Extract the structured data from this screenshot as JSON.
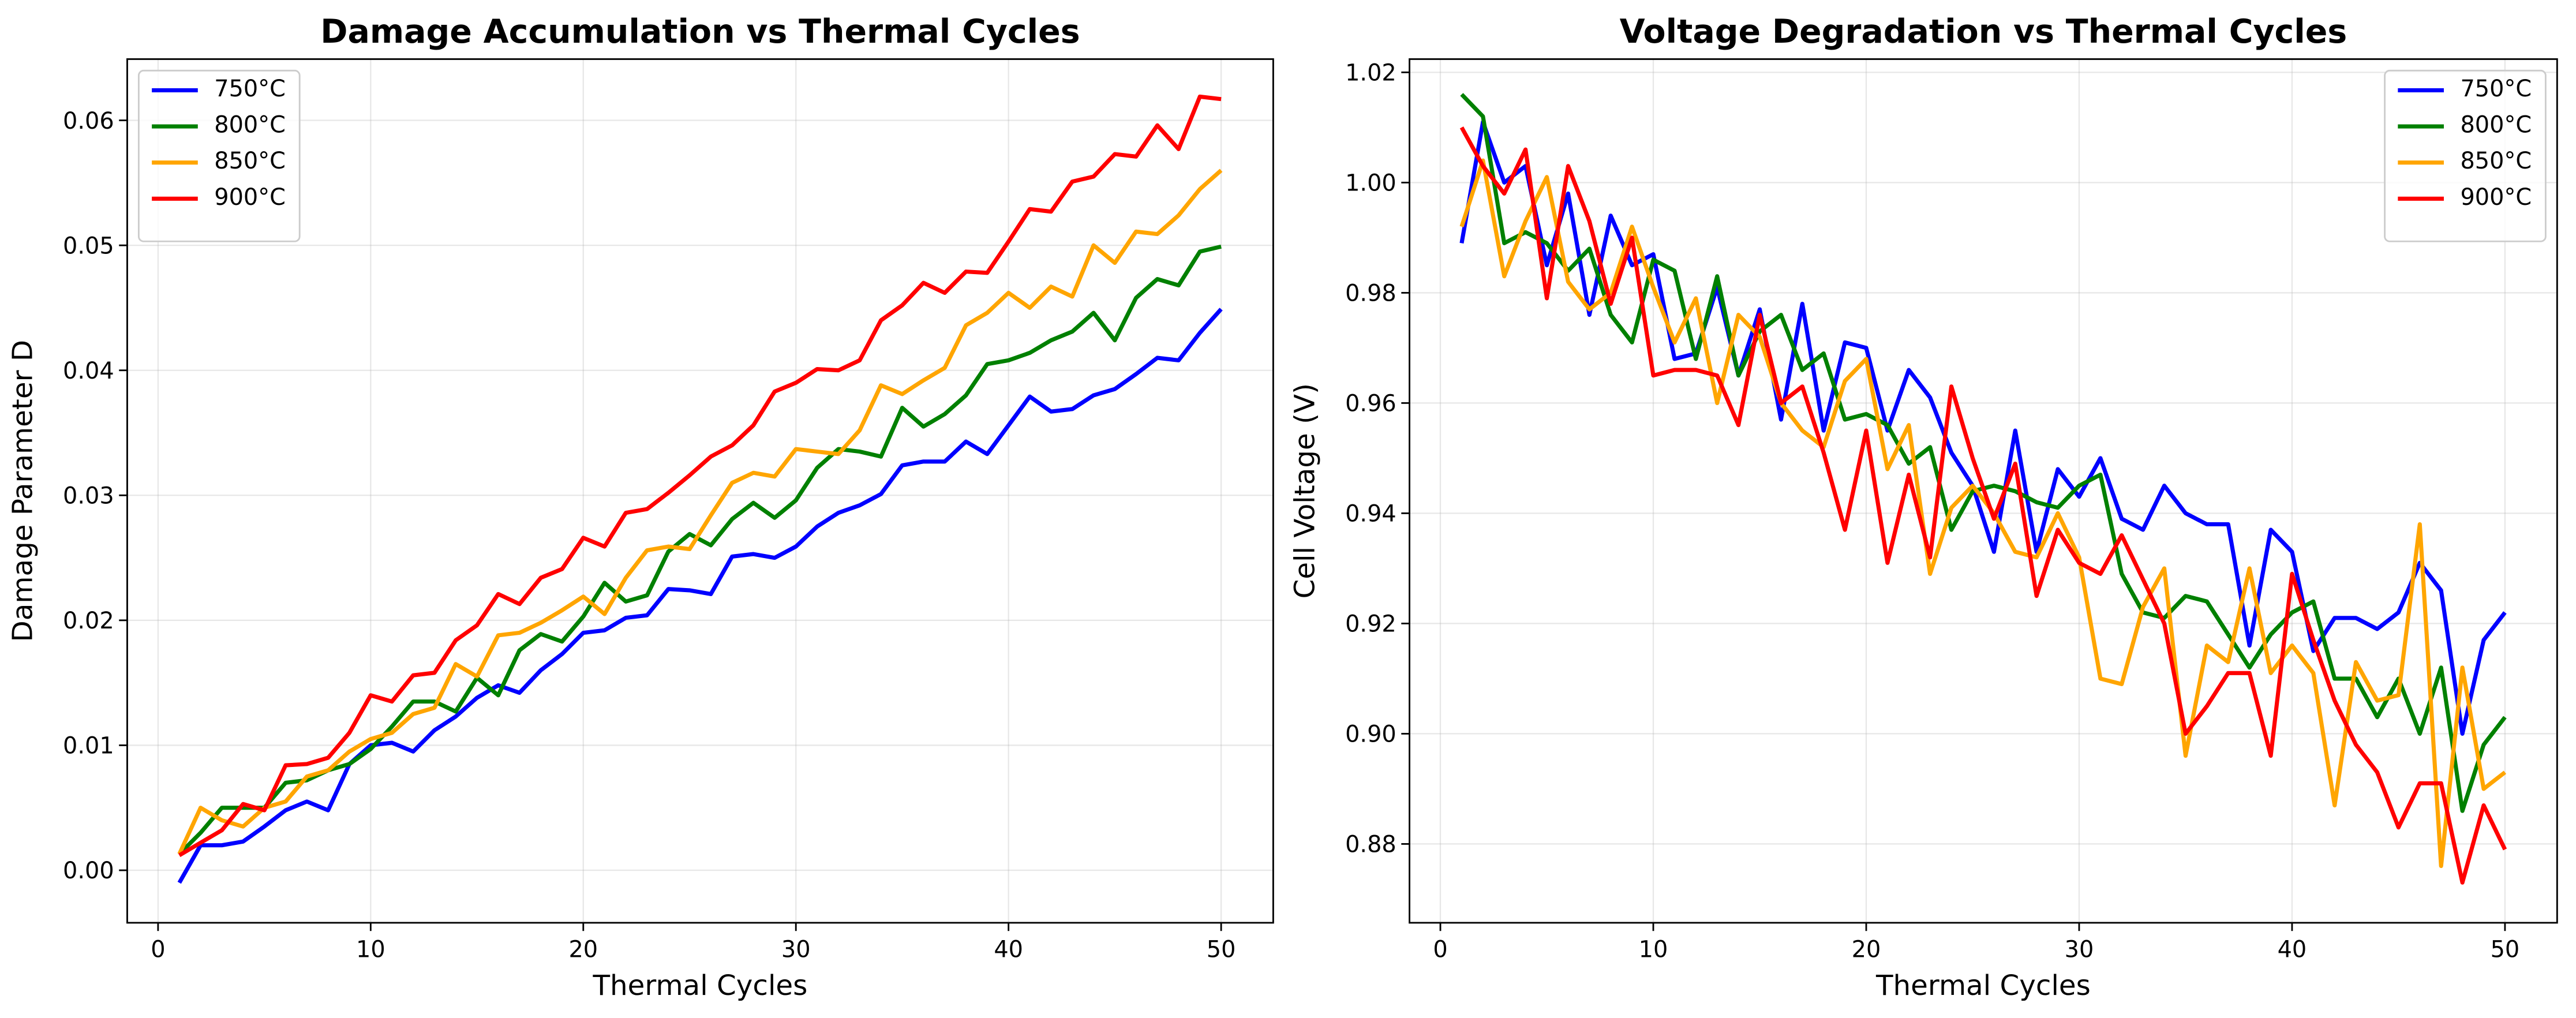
{
  "chart_data": [
    {
      "type": "line",
      "title": "Damage Accumulation vs Thermal Cycles",
      "xlabel": "Thermal Cycles",
      "ylabel": "Damage Parameter D",
      "x": [
        1,
        2,
        3,
        4,
        5,
        6,
        7,
        8,
        9,
        10,
        11,
        12,
        13,
        14,
        15,
        16,
        17,
        18,
        19,
        20,
        21,
        22,
        23,
        24,
        25,
        26,
        27,
        28,
        29,
        30,
        31,
        32,
        33,
        34,
        35,
        36,
        37,
        38,
        39,
        40,
        41,
        42,
        43,
        44,
        45,
        46,
        47,
        48,
        49,
        50
      ],
      "xlim": [
        -1.45,
        52.45
      ],
      "xticks": [
        0,
        10,
        20,
        30,
        40,
        50
      ],
      "ylim": [
        -0.0042,
        0.0649
      ],
      "yticks": [
        {
          "value": 0,
          "label": "0.00"
        },
        0.01,
        0.02,
        0.03,
        0.04,
        0.05,
        0.06
      ],
      "grid": true,
      "legend": "upper left",
      "series": [
        {
          "name": "750°C",
          "color": "#0000ff",
          "values": [
            -0.001,
            0.002,
            0.002,
            0.0023,
            0.0035,
            0.0048,
            0.0055,
            0.0048,
            0.0085,
            0.01,
            0.0102,
            0.0095,
            0.0112,
            0.0123,
            0.0138,
            0.0148,
            0.0142,
            0.016,
            0.0173,
            0.019,
            0.0192,
            0.0202,
            0.0204,
            0.0225,
            0.0224,
            0.0221,
            0.0251,
            0.0253,
            0.025,
            0.0259,
            0.0275,
            0.0286,
            0.0292,
            0.0301,
            0.0324,
            0.0327,
            0.0327,
            0.0343,
            0.0333,
            0.0356,
            0.0379,
            0.0367,
            0.0369,
            0.038,
            0.0385,
            0.0397,
            0.041,
            0.0408,
            0.043,
            0.0449
          ]
        },
        {
          "name": "800°C",
          "color": "#008000",
          "values": [
            0.0013,
            0.003,
            0.005,
            0.005,
            0.005,
            0.007,
            0.0072,
            0.008,
            0.0085,
            0.0097,
            0.0115,
            0.0135,
            0.0135,
            0.0127,
            0.0154,
            0.014,
            0.0176,
            0.0189,
            0.0183,
            0.0203,
            0.023,
            0.0215,
            0.022,
            0.0255,
            0.0269,
            0.026,
            0.0281,
            0.0294,
            0.0282,
            0.0296,
            0.0322,
            0.0337,
            0.0335,
            0.0331,
            0.037,
            0.0355,
            0.0365,
            0.038,
            0.0405,
            0.0408,
            0.0414,
            0.0424,
            0.0431,
            0.0446,
            0.0424,
            0.0458,
            0.0473,
            0.0468,
            0.0495,
            0.0499
          ]
        },
        {
          "name": "850°C",
          "color": "#ffa500",
          "values": [
            0.0013,
            0.005,
            0.004,
            0.0035,
            0.005,
            0.0055,
            0.0075,
            0.008,
            0.0095,
            0.0105,
            0.011,
            0.0125,
            0.013,
            0.0165,
            0.0155,
            0.0188,
            0.019,
            0.0198,
            0.0208,
            0.0219,
            0.0205,
            0.0234,
            0.0256,
            0.0259,
            0.0257,
            0.0284,
            0.031,
            0.0318,
            0.0315,
            0.0337,
            0.0335,
            0.0333,
            0.0352,
            0.0388,
            0.0381,
            0.0392,
            0.0402,
            0.0436,
            0.0446,
            0.0462,
            0.045,
            0.0467,
            0.0459,
            0.05,
            0.0486,
            0.0511,
            0.0509,
            0.0524,
            0.0545,
            0.056
          ]
        },
        {
          "name": "900°C",
          "color": "#ff0000",
          "values": [
            0.0012,
            0.0022,
            0.0032,
            0.0053,
            0.0048,
            0.0084,
            0.0085,
            0.009,
            0.011,
            0.014,
            0.0135,
            0.0156,
            0.0158,
            0.0184,
            0.0196,
            0.0221,
            0.0213,
            0.0234,
            0.0241,
            0.0266,
            0.0259,
            0.0286,
            0.0289,
            0.0302,
            0.0316,
            0.0331,
            0.034,
            0.0356,
            0.0383,
            0.039,
            0.0401,
            0.04,
            0.0408,
            0.044,
            0.0452,
            0.047,
            0.0462,
            0.0479,
            0.0478,
            0.0503,
            0.0529,
            0.0527,
            0.0551,
            0.0555,
            0.0573,
            0.0571,
            0.0596,
            0.0577,
            0.0619,
            0.0617
          ]
        }
      ]
    },
    {
      "type": "line",
      "title": "Voltage Degradation vs Thermal Cycles",
      "xlabel": "Thermal Cycles",
      "ylabel": "Cell Voltage (V)",
      "x": [
        1,
        2,
        3,
        4,
        5,
        6,
        7,
        8,
        9,
        10,
        11,
        12,
        13,
        14,
        15,
        16,
        17,
        18,
        19,
        20,
        21,
        22,
        23,
        24,
        25,
        26,
        27,
        28,
        29,
        30,
        31,
        32,
        33,
        34,
        35,
        36,
        37,
        38,
        39,
        40,
        41,
        42,
        43,
        44,
        45,
        46,
        47,
        48,
        49,
        50
      ],
      "xlim": [
        -1.45,
        52.45
      ],
      "xticks": [
        0,
        10,
        20,
        30,
        40,
        50
      ],
      "ylim": [
        0.8657,
        1.0224
      ],
      "yticks": [
        0.88,
        {
          "value": 0.9,
          "label": "0.90"
        },
        0.92,
        0.94,
        0.96,
        0.98,
        {
          "value": 1.0,
          "label": "1.00"
        },
        1.02
      ],
      "grid": true,
      "legend": "upper right",
      "series": [
        {
          "name": "750°C",
          "color": "#0000ff",
          "values": [
            0.989,
            1.011,
            1.0,
            1.003,
            0.985,
            0.998,
            0.976,
            0.994,
            0.985,
            0.987,
            0.968,
            0.969,
            0.981,
            0.965,
            0.977,
            0.957,
            0.978,
            0.955,
            0.971,
            0.97,
            0.955,
            0.966,
            0.961,
            0.951,
            0.945,
            0.933,
            0.955,
            0.933,
            0.948,
            0.943,
            0.95,
            0.939,
            0.937,
            0.945,
            0.94,
            0.938,
            0.938,
            0.916,
            0.937,
            0.933,
            0.915,
            0.921,
            0.921,
            0.919,
            0.922,
            0.931,
            0.926,
            0.9,
            0.917,
            0.922
          ]
        },
        {
          "name": "800°C",
          "color": "#008000",
          "values": [
            1.016,
            1.012,
            0.989,
            0.991,
            0.989,
            0.984,
            0.988,
            0.976,
            0.971,
            0.986,
            0.984,
            0.968,
            0.983,
            0.965,
            0.973,
            0.976,
            0.966,
            0.969,
            0.957,
            0.958,
            0.956,
            0.949,
            0.952,
            0.937,
            0.944,
            0.945,
            0.944,
            0.942,
            0.941,
            0.945,
            0.947,
            0.929,
            0.922,
            0.921,
            0.925,
            0.924,
            0.918,
            0.912,
            0.918,
            0.922,
            0.924,
            0.91,
            0.91,
            0.903,
            0.91,
            0.9,
            0.912,
            0.886,
            0.898,
            0.903
          ]
        },
        {
          "name": "850°C",
          "color": "#ffa500",
          "values": [
            0.992,
            1.004,
            0.983,
            0.993,
            1.001,
            0.982,
            0.977,
            0.98,
            0.992,
            0.981,
            0.971,
            0.979,
            0.96,
            0.976,
            0.972,
            0.96,
            0.955,
            0.952,
            0.964,
            0.968,
            0.948,
            0.956,
            0.929,
            0.941,
            0.945,
            0.94,
            0.933,
            0.932,
            0.94,
            0.932,
            0.91,
            0.909,
            0.923,
            0.93,
            0.896,
            0.916,
            0.913,
            0.93,
            0.911,
            0.916,
            0.911,
            0.887,
            0.913,
            0.906,
            0.907,
            0.938,
            0.876,
            0.912,
            0.89,
            0.893
          ]
        },
        {
          "name": "900°C",
          "color": "#ff0000",
          "values": [
            1.01,
            1.003,
            0.998,
            1.006,
            0.979,
            1.003,
            0.993,
            0.978,
            0.99,
            0.965,
            0.966,
            0.966,
            0.965,
            0.956,
            0.976,
            0.96,
            0.963,
            0.951,
            0.937,
            0.955,
            0.931,
            0.947,
            0.932,
            0.963,
            0.95,
            0.939,
            0.949,
            0.925,
            0.937,
            0.931,
            0.929,
            0.936,
            0.928,
            0.92,
            0.9,
            0.905,
            0.911,
            0.911,
            0.896,
            0.929,
            0.917,
            0.906,
            0.898,
            0.893,
            0.883,
            0.891,
            0.891,
            0.873,
            0.887,
            0.879
          ]
        }
      ]
    }
  ]
}
